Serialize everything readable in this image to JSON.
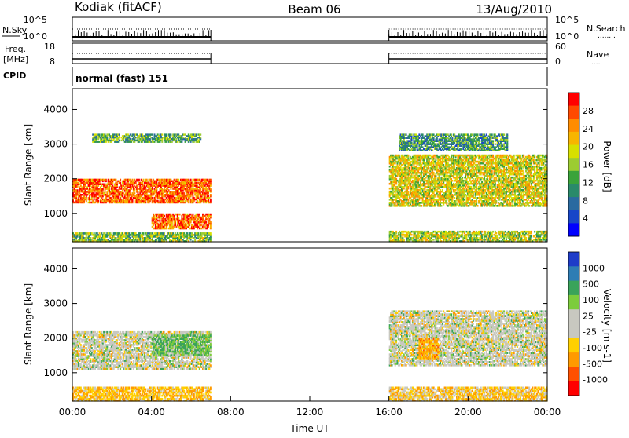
{
  "header": {
    "station": "Kodiak (fitACF)",
    "beam": "Beam 06",
    "date": "13/Aug/2010"
  },
  "nsky_panel": {
    "left_label": "N.Sky",
    "right_label": "N.Search",
    "right_line": "........",
    "left_ticks": [
      "10^5",
      "10^0"
    ],
    "right_ticks": [
      "10^5",
      "10^0"
    ]
  },
  "freq_panel": {
    "left_label_1": "Freq.",
    "left_label_2": "[MHz]",
    "right_label": "Nave",
    "right_line": "....",
    "left_ticks": [
      "18",
      "8"
    ],
    "right_ticks": [
      "60",
      "0"
    ]
  },
  "cpid_panel": {
    "label": "CPID",
    "text": "normal (fast) 151"
  },
  "x_axis": {
    "label": "Time UT",
    "ticks": [
      "00:00",
      "04:00",
      "08:00",
      "12:00",
      "16:00",
      "20:00",
      "00:00"
    ]
  },
  "chart_data": [
    {
      "type": "heatmap",
      "quantity": "Power",
      "ylabel": "Slant Range [km]",
      "xlabel": "",
      "yticks": [
        1000,
        2000,
        3000,
        4000
      ],
      "ylim": [
        180,
        4600
      ],
      "xlim_hours": [
        0,
        24
      ],
      "colorbar": {
        "label": "Power [dB]",
        "ticks": [
          "28",
          "24",
          "20",
          "16",
          "12",
          "8",
          "4"
        ],
        "colors": [
          "#ff0000",
          "#ff4a00",
          "#ff8c00",
          "#f7b500",
          "#d7e000",
          "#9ccc32",
          "#3aa33a",
          "#2a8a6a",
          "#2a6aa0",
          "#1846c8",
          "#0000ff"
        ]
      },
      "data_windows_hours": [
        [
          0,
          7
        ],
        [
          16,
          24
        ]
      ],
      "echo_bands": [
        {
          "t": [
            0.0,
            7.0
          ],
          "range_km": [
            1300,
            2000
          ],
          "level_dB": 26
        },
        {
          "t": [
            4.0,
            7.0
          ],
          "range_km": [
            550,
            1000
          ],
          "level_dB": 26
        },
        {
          "t": [
            0.0,
            7.0
          ],
          "range_km": [
            180,
            450
          ],
          "level_dB": 14
        },
        {
          "t": [
            1.0,
            6.5
          ],
          "range_km": [
            3050,
            3300
          ],
          "level_dB": 12
        },
        {
          "t": [
            16.0,
            24.0
          ],
          "range_km": [
            1200,
            2700
          ],
          "level_dB": 18
        },
        {
          "t": [
            16.0,
            24.0
          ],
          "range_km": [
            180,
            500
          ],
          "level_dB": 16
        },
        {
          "t": [
            16.5,
            22.0
          ],
          "range_km": [
            2800,
            3300
          ],
          "level_dB": 10
        }
      ]
    },
    {
      "type": "heatmap",
      "quantity": "Velocity",
      "ylabel": "Slant Range [km]",
      "xlabel": "Time UT",
      "yticks": [
        1000,
        2000,
        3000,
        4000
      ],
      "ylim": [
        180,
        4600
      ],
      "xlim_hours": [
        0,
        24
      ],
      "colorbar": {
        "label": "Velocity [m s-1]",
        "ticks": [
          "1000",
          "500",
          "100",
          "25",
          "-25",
          "-100",
          "-500",
          "-1000"
        ],
        "colors": [
          "#1e3cc8",
          "#2e7db4",
          "#3aa35a",
          "#7ccc3c",
          "#c8c8c0",
          "#c8c8c0",
          "#ffd000",
          "#ff9a00",
          "#ff5000",
          "#ff0000"
        ]
      },
      "data_windows_hours": [
        [
          0,
          7
        ],
        [
          16,
          24
        ]
      ],
      "echo_bands": [
        {
          "t": [
            0.0,
            7.0
          ],
          "range_km": [
            1100,
            2200
          ],
          "velocity": 0
        },
        {
          "t": [
            0.0,
            7.0
          ],
          "range_km": [
            180,
            600
          ],
          "velocity": -200
        },
        {
          "t": [
            4.0,
            7.0
          ],
          "range_km": [
            1500,
            2100
          ],
          "velocity": 200
        },
        {
          "t": [
            16.0,
            24.0
          ],
          "range_km": [
            1200,
            2800
          ],
          "velocity": 0
        },
        {
          "t": [
            17.5,
            18.5
          ],
          "range_km": [
            1400,
            2000
          ],
          "velocity": -400
        },
        {
          "t": [
            16.0,
            24.0
          ],
          "range_km": [
            180,
            600
          ],
          "velocity": -150
        }
      ]
    }
  ]
}
